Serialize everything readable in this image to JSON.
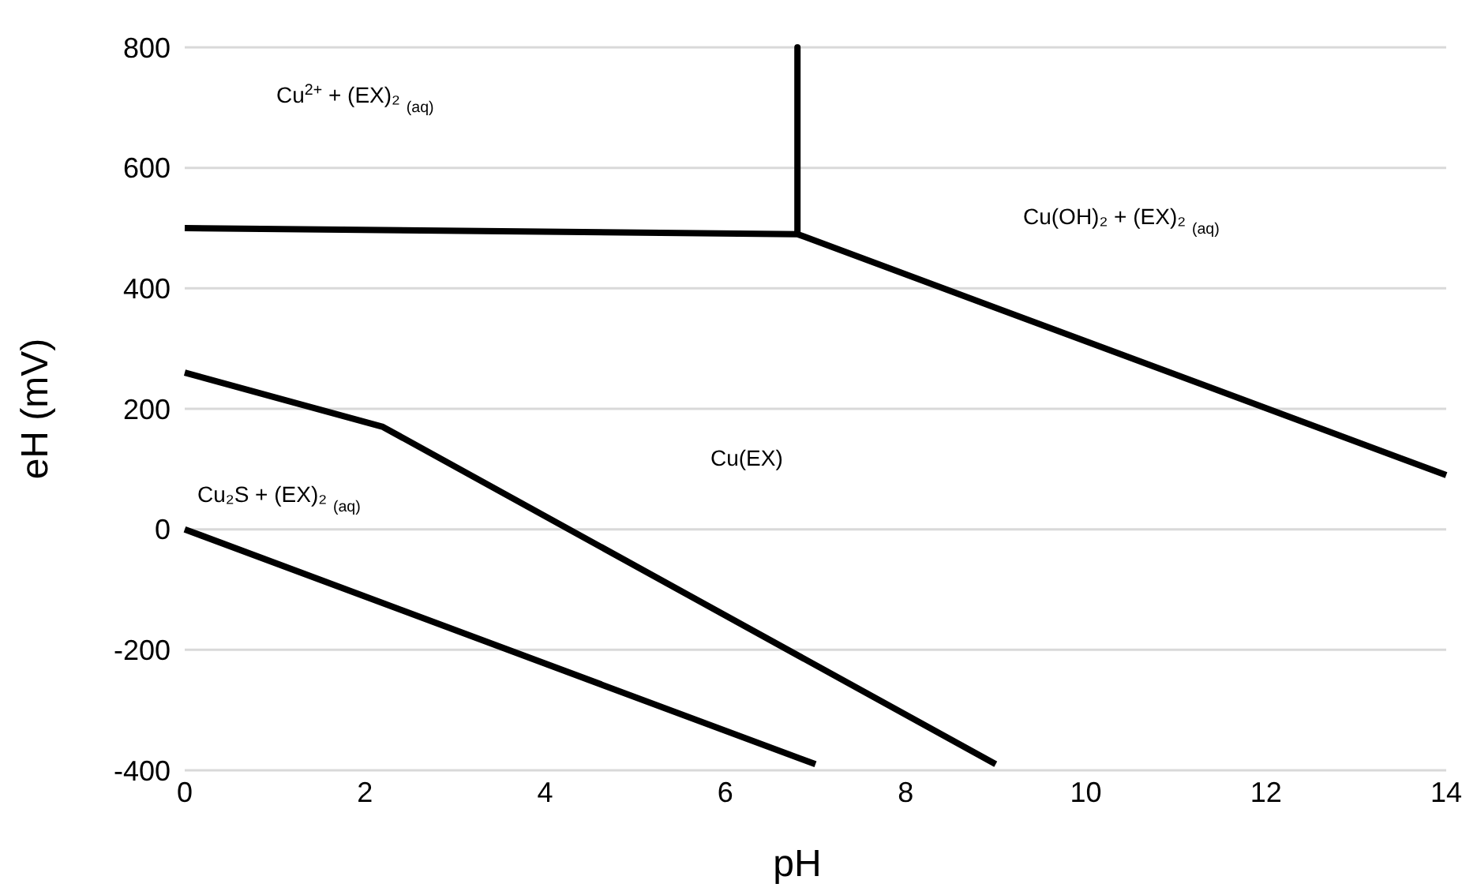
{
  "chart_data": {
    "type": "line",
    "xlabel": "pH",
    "ylabel": "eH (mV)",
    "xlim": [
      0,
      14
    ],
    "xticks": [
      0,
      2,
      4,
      6,
      8,
      10,
      12,
      14
    ],
    "ylim": [
      -400,
      800
    ],
    "yticks": [
      -400,
      -200,
      0,
      200,
      400,
      600,
      800
    ],
    "grid": "y",
    "marker": "none",
    "line_style": "solid",
    "series": [
      {
        "color": "#000000",
        "x": [
          0,
          6.8,
          6.8,
          6.8,
          14
        ],
        "values": [
          500,
          490,
          800,
          490,
          90
        ]
      },
      {
        "color": "#000000",
        "x": [
          0,
          2.2,
          9.0
        ],
        "values": [
          260,
          170,
          -390
        ]
      },
      {
        "color": "#000000",
        "x": [
          0,
          7.0
        ],
        "values": [
          0,
          -390
        ]
      }
    ],
    "annotations": [
      "Cu$^{2+}$ + (EX)₂ $_{(aq)}$",
      "Cu(OH)₂ + (EX)₂ $_{(aq)}$",
      "Cu(EX)",
      "Cu₂S + (EX)₂ $_{(aq)}$"
    ]
  }
}
